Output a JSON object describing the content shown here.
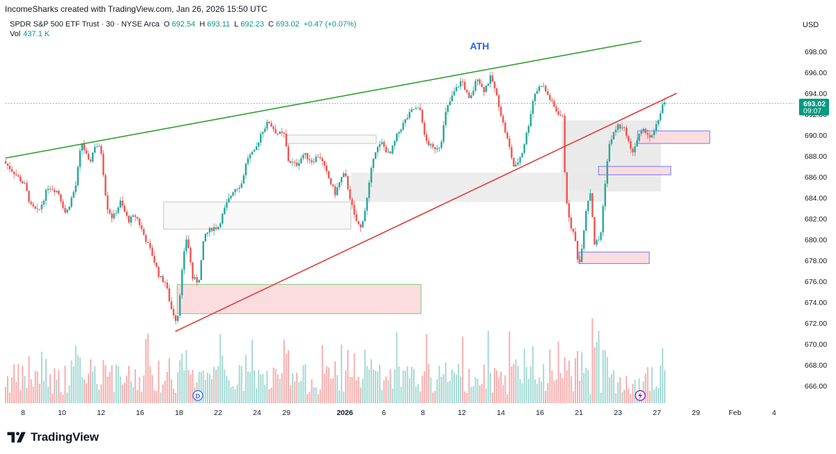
{
  "header": {
    "credit": "IncomeSharks created with TradingView.com, Jan 26, 2026 15:50 UTC",
    "symbol": "SPDR S&P 500 ETF Trust · 30 · NYSE Arca",
    "o_label": "O",
    "o_value": "692.54",
    "h_label": "H",
    "h_value": "693.11",
    "l_label": "L",
    "l_value": "692.23",
    "c_label": "C",
    "c_value": "693.02",
    "change": "+0.47 (+0.07%)",
    "vol_label": "Vol",
    "vol_value": "437.1 K",
    "currency": "USD"
  },
  "footer": {
    "brand": "TradingView"
  },
  "chart_data": {
    "type": "candlestick",
    "y_axis": {
      "ticks": [
        666,
        668,
        670,
        672,
        674,
        676,
        678,
        680,
        682,
        684,
        686,
        688,
        690,
        692,
        694,
        696,
        698
      ],
      "tick_labels": [
        "666.00",
        "668.00",
        "670.00",
        "672.00",
        "674.00",
        "676.00",
        "678.00",
        "680.00",
        "682.00",
        "684.00",
        "686.00",
        "688.00",
        "690.00",
        "692.00",
        "694.00",
        "696.00",
        "698.00"
      ],
      "range": [
        664.8,
        702.0
      ]
    },
    "x_axis": {
      "labels": [
        "8",
        "10",
        "12",
        "16",
        "18",
        "22",
        "24",
        "29",
        "2026",
        "6",
        "8",
        "12",
        "14",
        "16",
        "21",
        "23",
        "27",
        "29",
        "Feb",
        "4"
      ],
      "bold": [
        "2026"
      ],
      "range_bars": [
        0,
        54
      ]
    },
    "current_price": {
      "value": 693.02,
      "label": "693.02",
      "countdown": "09:07"
    },
    "annotation": {
      "text": "ATH",
      "at_bar": 24.3,
      "at_price": 698.2
    },
    "trendlines": [
      {
        "name": "resistance",
        "color": "#2ca02c",
        "from": [
          0,
          687.8
        ],
        "to": [
          32.6,
          699.0
        ]
      },
      {
        "name": "support",
        "color": "#e53935",
        "from": [
          8.7,
          671.2
        ],
        "to": [
          34.4,
          694.0
        ]
      }
    ],
    "zones": [
      {
        "kind": "demand",
        "from_bar": 8.8,
        "to_bar": 21.3,
        "low": 672.9,
        "high": 675.7,
        "fill": "#fcd9dc",
        "stroke": "#8fd18f"
      },
      {
        "kind": "range",
        "from_bar": 8.1,
        "to_bar": 17.7,
        "low": 681.0,
        "high": 683.6,
        "fill": "#f7f7f7",
        "stroke": "#cfcfcf"
      },
      {
        "kind": "range",
        "from_bar": 14.4,
        "to_bar": 19.0,
        "low": 689.2,
        "high": 690.0,
        "fill": "#f7f7f7",
        "stroke": "#cfcfcf"
      },
      {
        "kind": "range",
        "from_bar": 17.7,
        "to_bar": 30.8,
        "low": 683.6,
        "high": 686.4,
        "fill": "#ebebeb",
        "stroke": "none"
      },
      {
        "kind": "range",
        "from_bar": 28.5,
        "to_bar": 33.6,
        "low": 684.6,
        "high": 691.4,
        "fill": "#e8e8e8",
        "stroke": "none"
      },
      {
        "kind": "imbalance",
        "from_bar": 32.4,
        "to_bar": 36.1,
        "low": 689.2,
        "high": 690.4,
        "fill": "#fcd9dc",
        "stroke": "#7b8cff"
      },
      {
        "kind": "imbalance",
        "from_bar": 30.4,
        "to_bar": 34.1,
        "low": 686.2,
        "high": 687.0,
        "fill": "#fcd9dc",
        "stroke": "#7b8cff"
      },
      {
        "kind": "imbalance",
        "from_bar": 29.4,
        "to_bar": 33.0,
        "low": 677.7,
        "high": 678.8,
        "fill": "#fcd9dc",
        "stroke": "#7b8cff"
      }
    ],
    "price_path": [
      [
        0,
        687.5
      ],
      [
        0.6,
        686.3
      ],
      [
        1.1,
        685.2
      ],
      [
        1.4,
        683.2
      ],
      [
        1.8,
        682.6
      ],
      [
        2.3,
        685.1
      ],
      [
        2.8,
        684.6
      ],
      [
        3.2,
        682.4
      ],
      [
        3.7,
        685.1
      ],
      [
        4.0,
        689.4
      ],
      [
        4.4,
        687.2
      ],
      [
        4.7,
        689.1
      ],
      [
        5.0,
        688.6
      ],
      [
        5.3,
        683.2
      ],
      [
        5.6,
        682.0
      ],
      [
        6.0,
        683.6
      ],
      [
        6.4,
        681.8
      ],
      [
        6.8,
        682.3
      ],
      [
        7.2,
        680.4
      ],
      [
        7.6,
        678.7
      ],
      [
        8.0,
        676.4
      ],
      [
        8.3,
        675.9
      ],
      [
        8.6,
        673.4
      ],
      [
        8.9,
        672.1
      ],
      [
        9.2,
        677.8
      ],
      [
        9.4,
        680.4
      ],
      [
        9.7,
        676.3
      ],
      [
        10.0,
        675.9
      ],
      [
        10.3,
        680.4
      ],
      [
        10.7,
        681.1
      ],
      [
        11.0,
        681.2
      ],
      [
        11.4,
        683.2
      ],
      [
        11.8,
        684.8
      ],
      [
        12.2,
        685.3
      ],
      [
        12.5,
        687.8
      ],
      [
        12.9,
        688.4
      ],
      [
        13.2,
        690.2
      ],
      [
        13.6,
        691.3
      ],
      [
        14.0,
        690.2
      ],
      [
        14.4,
        690.0
      ],
      [
        14.6,
        687.6
      ],
      [
        15.0,
        687.1
      ],
      [
        15.4,
        688.2
      ],
      [
        15.8,
        687.5
      ],
      [
        16.2,
        688.1
      ],
      [
        16.6,
        686.2
      ],
      [
        17.0,
        684.4
      ],
      [
        17.3,
        685.8
      ],
      [
        17.5,
        686.3
      ],
      [
        17.7,
        684.6
      ],
      [
        18.0,
        682.1
      ],
      [
        18.3,
        681.0
      ],
      [
        18.6,
        683.4
      ],
      [
        19.0,
        688.4
      ],
      [
        19.4,
        689.2
      ],
      [
        19.8,
        688.0
      ],
      [
        20.2,
        690.1
      ],
      [
        20.6,
        691.4
      ],
      [
        21.0,
        692.5
      ],
      [
        21.4,
        692.4
      ],
      [
        21.6,
        689.6
      ],
      [
        22.0,
        688.7
      ],
      [
        22.4,
        689.0
      ],
      [
        22.7,
        692.4
      ],
      [
        23.1,
        694.1
      ],
      [
        23.5,
        695.3
      ],
      [
        23.9,
        693.2
      ],
      [
        24.3,
        695.6
      ],
      [
        24.6,
        694.2
      ],
      [
        25.0,
        695.6
      ],
      [
        25.4,
        692.9
      ],
      [
        25.6,
        691.2
      ],
      [
        25.9,
        689.1
      ],
      [
        26.2,
        686.7
      ],
      [
        26.6,
        688.4
      ],
      [
        26.9,
        690.8
      ],
      [
        27.2,
        693.9
      ],
      [
        27.6,
        694.9
      ],
      [
        28.0,
        693.5
      ],
      [
        28.3,
        692.4
      ],
      [
        28.7,
        691.6
      ],
      [
        28.8,
        685.0
      ],
      [
        29.0,
        681.8
      ],
      [
        29.3,
        680.1
      ],
      [
        29.5,
        677.3
      ],
      [
        29.7,
        680.1
      ],
      [
        29.9,
        683.4
      ],
      [
        30.1,
        684.6
      ],
      [
        30.3,
        679.6
      ],
      [
        30.6,
        680.1
      ],
      [
        30.9,
        686.7
      ],
      [
        31.1,
        689.5
      ],
      [
        31.5,
        690.9
      ],
      [
        31.9,
        690.4
      ],
      [
        32.2,
        688.2
      ],
      [
        32.6,
        690.0
      ],
      [
        32.9,
        690.5
      ],
      [
        33.2,
        689.6
      ],
      [
        33.5,
        691.0
      ],
      [
        33.8,
        693.0
      ]
    ]
  }
}
